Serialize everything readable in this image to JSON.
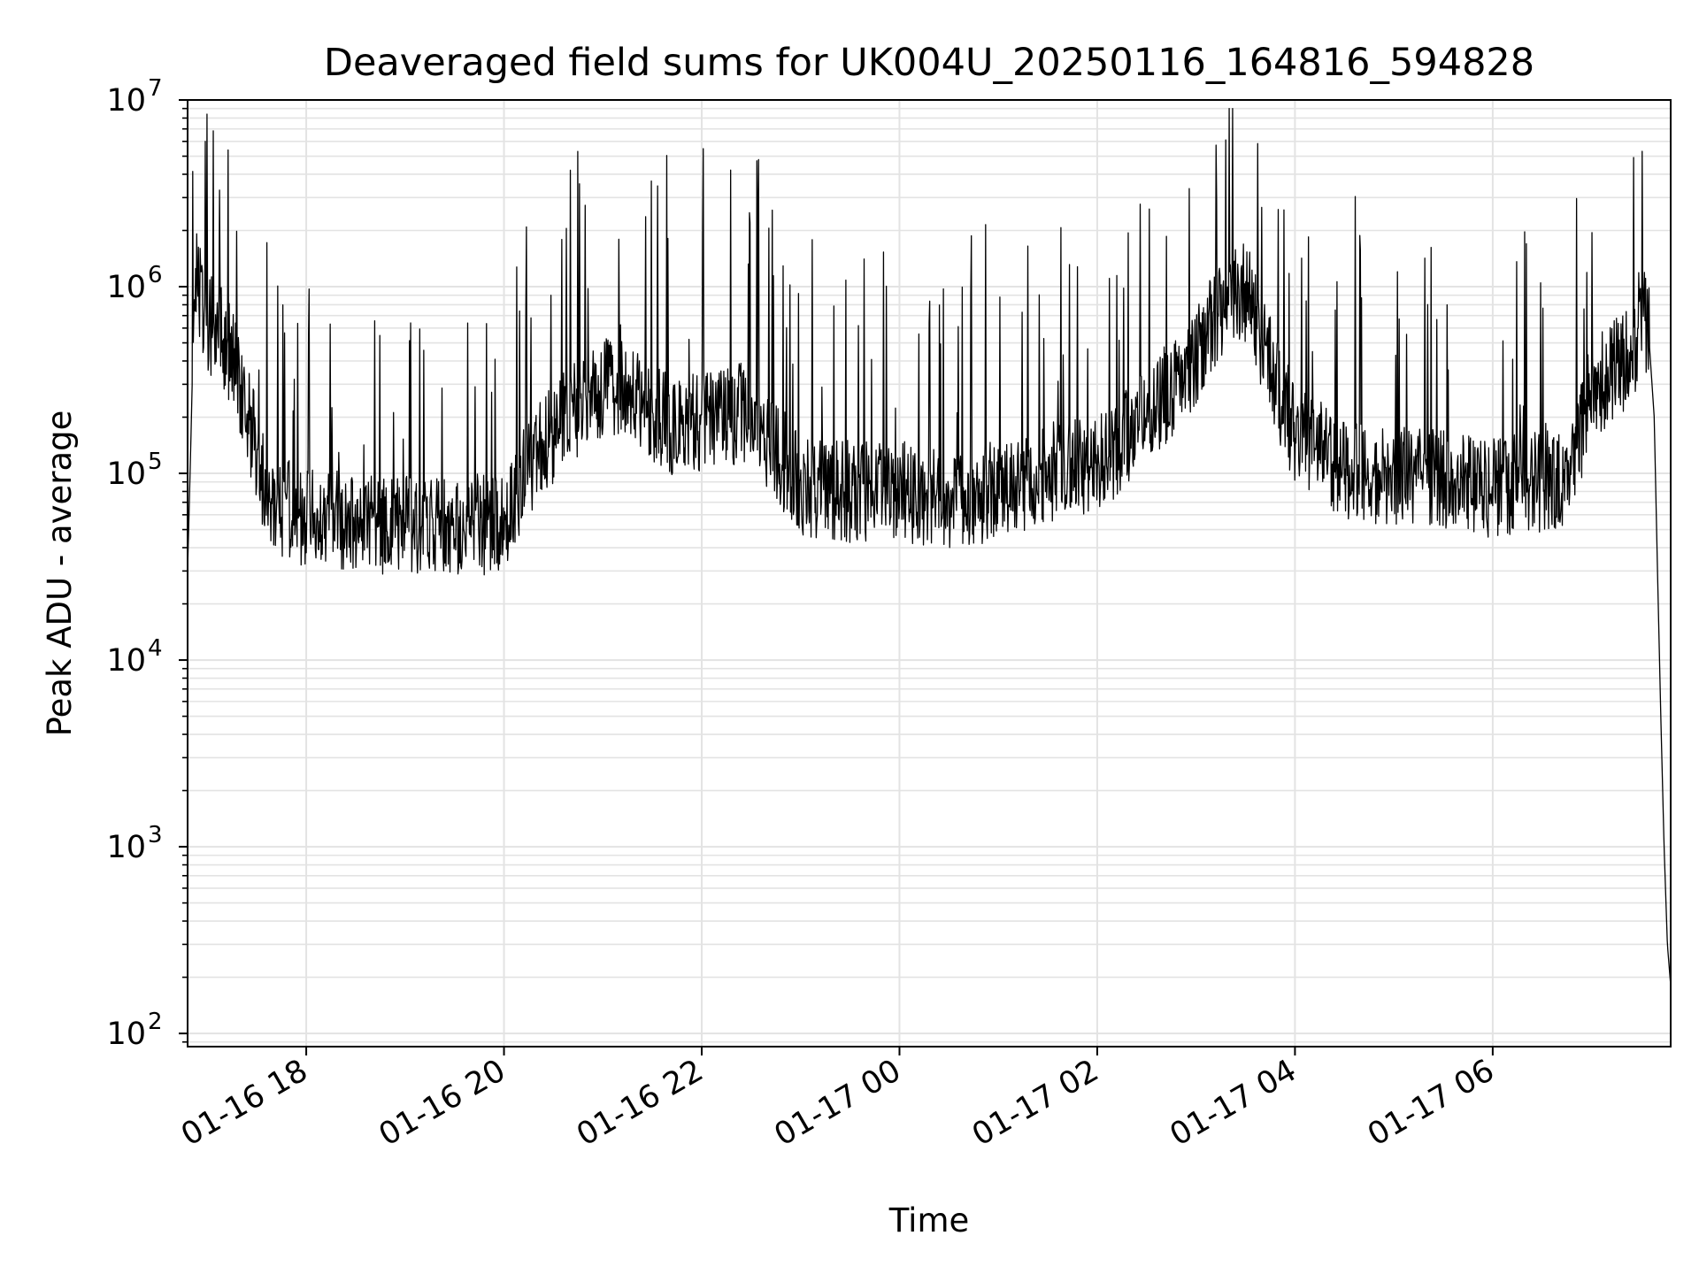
{
  "chart_data": {
    "type": "line",
    "title": "Deaveraged field sums for UK004U_20250116_164816_594828",
    "xlabel": "Time",
    "ylabel": "Peak ADU - average",
    "yscale": "log",
    "ylim": [
      85,
      10000000
    ],
    "xlim": [
      "01-16 16:48",
      "01-17 07:48"
    ],
    "grid": "on (major and minor)",
    "line_color": "#000000",
    "grid_color": "#e3e3e3",
    "y_ticks": [
      {
        "base": "10",
        "exp": "2",
        "value": 100
      },
      {
        "base": "10",
        "exp": "3",
        "value": 1000
      },
      {
        "base": "10",
        "exp": "4",
        "value": 10000
      },
      {
        "base": "10",
        "exp": "5",
        "value": 100000
      },
      {
        "base": "10",
        "exp": "6",
        "value": 1000000
      },
      {
        "base": "10",
        "exp": "7",
        "value": 10000000
      }
    ],
    "x_ticks": [
      "01-16 18",
      "01-16 20",
      "01-16 22",
      "01-17 00",
      "01-17 02",
      "01-17 04",
      "01-17 06"
    ],
    "series": [
      {
        "x": [
          "01-16 16:48",
          "01-16 16:50",
          "01-16 16:52",
          "01-16 16:54",
          "01-16 16:56",
          "01-16 16:58",
          "01-16 17:00",
          "01-16 17:05",
          "01-16 17:10",
          "01-16 17:15",
          "01-16 17:20",
          "01-16 17:25",
          "01-16 17:30",
          "01-16 17:35",
          "01-16 17:40",
          "01-16 17:45",
          "01-16 18:00",
          "01-16 18:30",
          "01-16 19:00",
          "01-16 19:30",
          "01-16 20:00",
          "01-16 20:20",
          "01-16 20:40",
          "01-16 21:00",
          "01-16 21:20",
          "01-16 21:40",
          "01-16 22:00",
          "01-16 22:30",
          "01-16 23:00",
          "01-16 23:30",
          "01-17 00:00",
          "01-17 00:30",
          "01-17 01:00",
          "01-17 01:30",
          "01-17 02:00",
          "01-17 02:30",
          "01-17 03:00",
          "01-17 03:15",
          "01-17 03:30",
          "01-17 03:45",
          "01-17 04:00",
          "01-17 04:30",
          "01-17 05:00",
          "01-17 05:30",
          "01-17 06:00",
          "01-17 06:30",
          "01-17 06:45",
          "01-17 07:00",
          "01-17 07:15",
          "01-17 07:25",
          "01-17 07:30",
          "01-17 07:35",
          "01-17 07:38",
          "01-17 07:40",
          "01-17 07:42",
          "01-17 07:44",
          "01-17 07:46",
          "01-17 07:48"
        ],
        "y": [
          30000,
          150000,
          900000,
          1200000,
          800000,
          650000,
          600000,
          550000,
          500000,
          380000,
          250000,
          180000,
          120000,
          80000,
          65000,
          60000,
          55000,
          50000,
          48000,
          48000,
          52000,
          120000,
          200000,
          280000,
          250000,
          170000,
          180000,
          200000,
          80000,
          75000,
          75000,
          70000,
          75000,
          95000,
          100000,
          180000,
          400000,
          700000,
          900000,
          350000,
          150000,
          100000,
          90000,
          85000,
          80000,
          85000,
          90000,
          250000,
          350000,
          400000,
          700000,
          500000,
          200000,
          30000,
          5000,
          1000,
          300,
          180
        ]
      }
    ]
  }
}
